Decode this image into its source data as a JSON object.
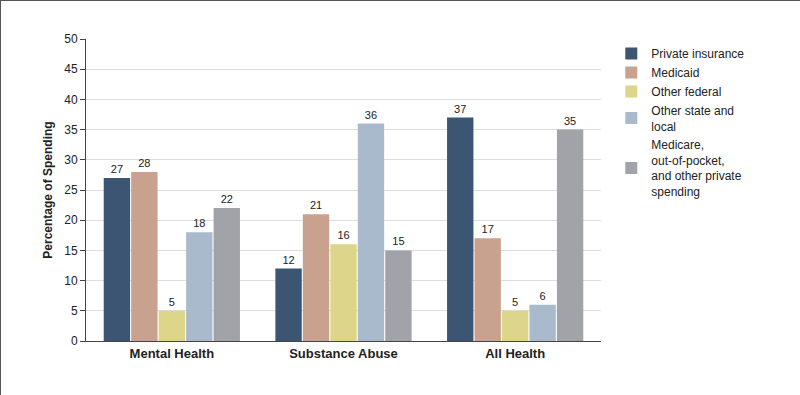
{
  "chart_data": {
    "type": "bar",
    "y_label": "Percentage of Spending",
    "categories": [
      "Mental Health",
      "Substance Abuse",
      "All Health"
    ],
    "series": [
      {
        "name": "Private insurance",
        "color": "#3b5573",
        "values": [
          27,
          12,
          37
        ]
      },
      {
        "name": "Medicaid",
        "color": "#c8a28e",
        "values": [
          28,
          21,
          17
        ]
      },
      {
        "name": "Other federal",
        "color": "#ddd58a",
        "values": [
          5,
          16,
          5
        ]
      },
      {
        "name": "Other state and local",
        "color": "#a9bacd",
        "values": [
          18,
          36,
          6
        ]
      },
      {
        "name": "Medicare, out-of-pocket, and other private spending",
        "color": "#a2a3a8",
        "values": [
          22,
          15,
          35
        ]
      }
    ],
    "ylim": [
      0,
      50
    ],
    "yticks": [
      0,
      5,
      10,
      15,
      20,
      25,
      30,
      35,
      40,
      45,
      50
    ],
    "grid": true,
    "legend": "right",
    "data_labels": true
  }
}
